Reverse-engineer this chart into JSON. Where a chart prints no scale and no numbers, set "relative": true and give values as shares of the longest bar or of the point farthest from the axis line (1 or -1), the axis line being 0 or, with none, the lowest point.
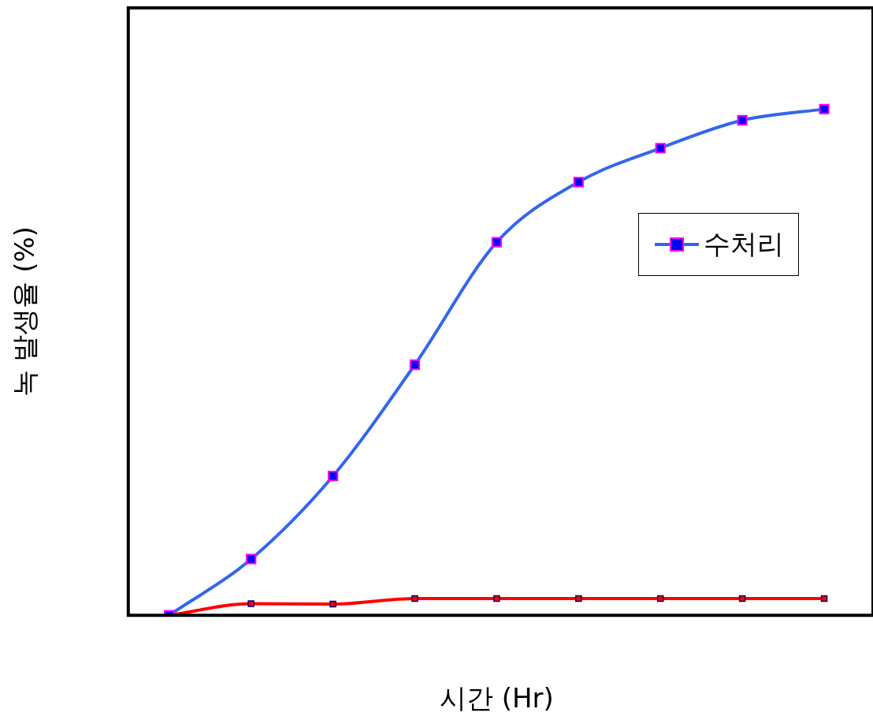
{
  "chart_data": {
    "type": "line",
    "relative": true,
    "xlabel": "시간 (Hr)",
    "ylabel": "녹 발생율 (%)",
    "categories": [
      null,
      null,
      null,
      null,
      null,
      null,
      null,
      null,
      null
    ],
    "series": [
      {
        "color": "#ff0000",
        "values": [
          0,
          0.023,
          0.022,
          0.033,
          0.033,
          0.033,
          0.033,
          0.033,
          0.033
        ]
      },
      {
        "name": "수처리",
        "color": "#3366ee",
        "values": [
          0,
          0.111,
          0.275,
          0.495,
          0.737,
          0.856,
          0.923,
          0.978,
          1
        ]
      }
    ],
    "marker": "square",
    "legend": "right",
    "grid": false,
    "tick_labels": false
  }
}
